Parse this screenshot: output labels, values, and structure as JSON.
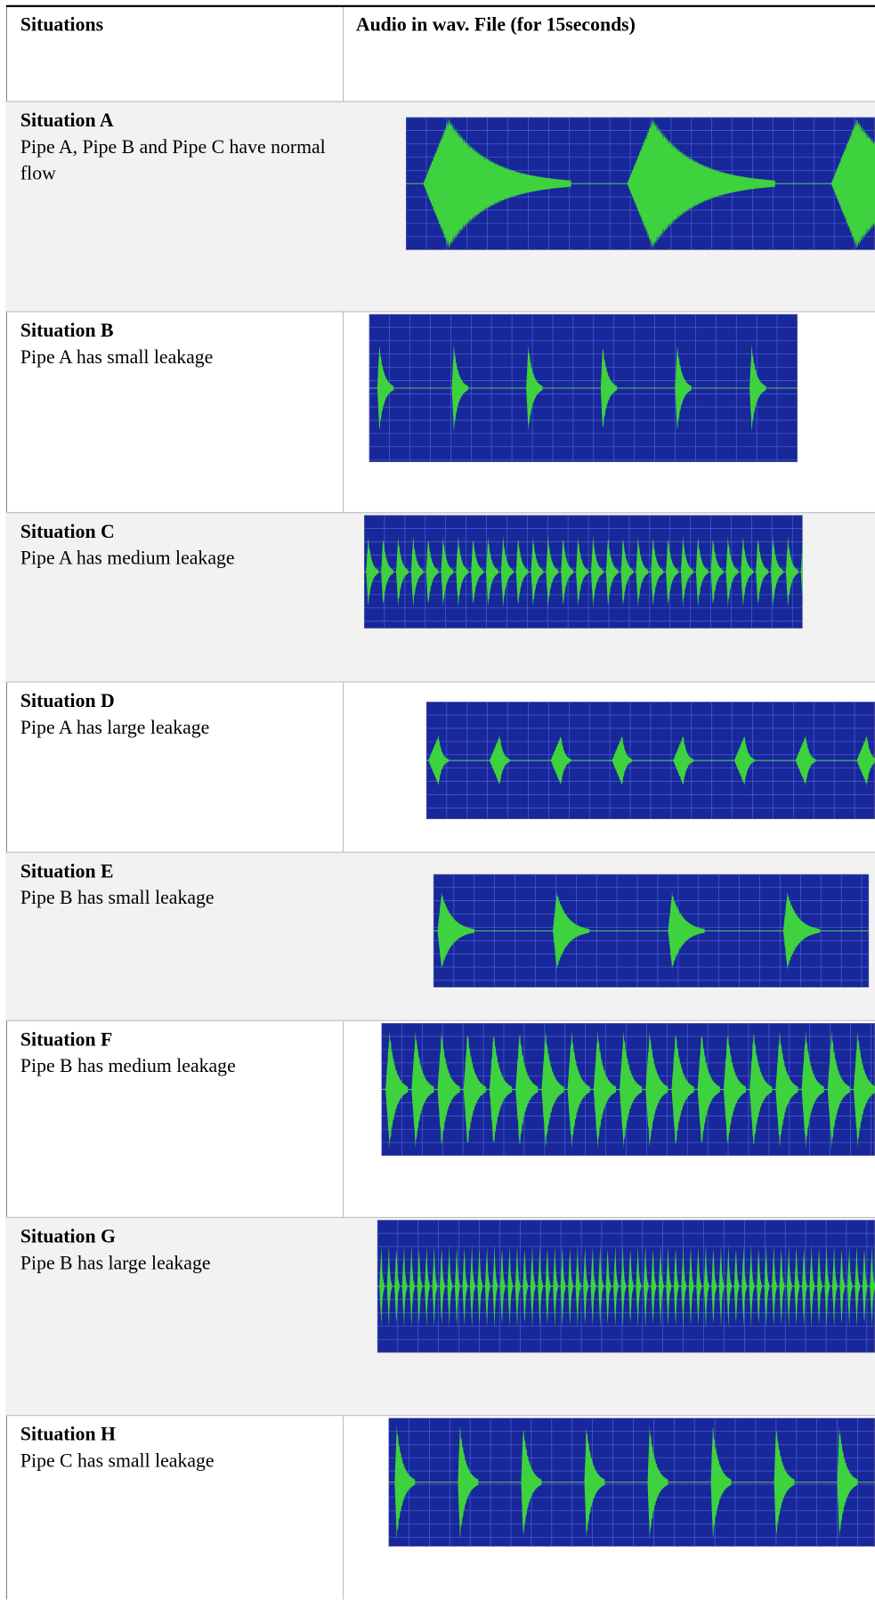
{
  "header": {
    "col1": "Situations",
    "col2": "Audio in wav. File (for 15seconds)"
  },
  "rows": [
    {
      "title": "Situation A",
      "description": "Pipe A, Pipe B and Pipe C have normal flow"
    },
    {
      "title": "Situation B",
      "description": "Pipe A has small leakage"
    },
    {
      "title": "Situation C",
      "description": "Pipe A has medium leakage"
    },
    {
      "title": "Situation D",
      "description": "Pipe A has large leakage"
    },
    {
      "title": "Situation E",
      "description": "Pipe B has small leakage"
    },
    {
      "title": "Situation F",
      "description": "Pipe B has medium leakage"
    },
    {
      "title": "Situation G",
      "description": "Pipe B has large leakage"
    },
    {
      "title": "Situation H",
      "description": "Pipe C has small leakage"
    }
  ]
}
